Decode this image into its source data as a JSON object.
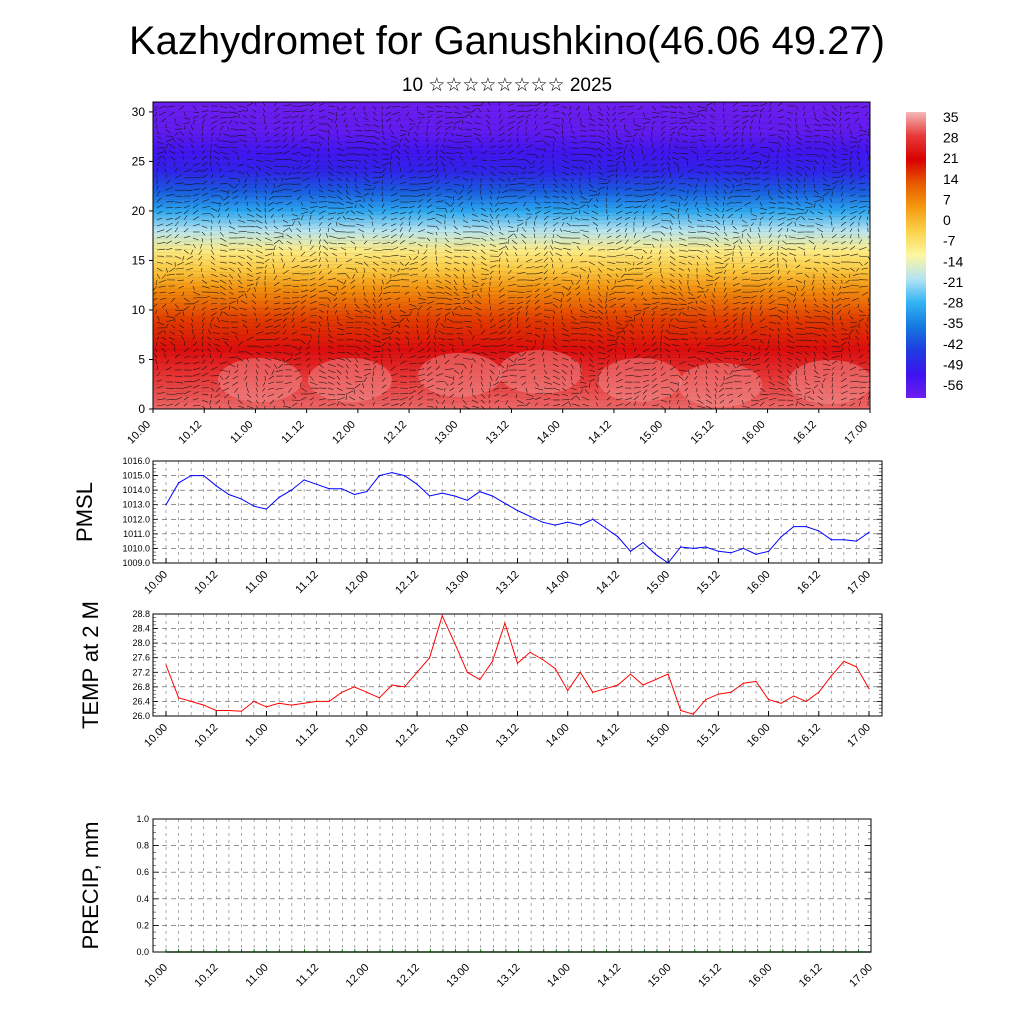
{
  "title": "Kazhydromet for Ganushkino(46.06 49.27)",
  "subtitle": "10 ☆☆☆☆☆☆☆☆ 2025",
  "colors": {
    "pmsl_line": "#0000ff",
    "temp_line": "#ff0000",
    "precip_line": "#1a7a1a"
  },
  "chart_data": [
    {
      "id": "cross-section",
      "type": "heatmap",
      "description_of_values": "temperature vs height with wind vectors",
      "x_ticks": [
        "10.00",
        "10.12",
        "11.00",
        "11.12",
        "12.00",
        "12.12",
        "13.00",
        "13.12",
        "14.00",
        "14.12",
        "15.00",
        "15.12",
        "16.00",
        "16.12",
        "17.00"
      ],
      "y_ticks": [
        "0",
        "5",
        "10",
        "15",
        "20",
        "25",
        "30"
      ],
      "ylim": [
        0,
        31
      ],
      "colorbar_labels": [
        "35",
        "28",
        "21",
        "14",
        "7",
        "0",
        "-7",
        "-14",
        "-21",
        "-28",
        "-35",
        "-42",
        "-49",
        "-56"
      ],
      "colorbar_colors": [
        "#f4b8b8",
        "#e83a3a",
        "#d80000",
        "#e85a00",
        "#f59a10",
        "#fcd24a",
        "#fdf7a0",
        "#b4e4f4",
        "#32b4f4",
        "#1478e0",
        "#1e3ce0",
        "#3c14f0",
        "#6e1ef0"
      ],
      "temperature_by_height": [
        {
          "h": 0,
          "t": 30
        },
        {
          "h": 3,
          "t": 27
        },
        {
          "h": 6,
          "t": 21
        },
        {
          "h": 9,
          "t": 14
        },
        {
          "h": 12,
          "t": 5
        },
        {
          "h": 14,
          "t": -3
        },
        {
          "h": 16,
          "t": -10
        },
        {
          "h": 18,
          "t": -20
        },
        {
          "h": 20,
          "t": -30
        },
        {
          "h": 22,
          "t": -40
        },
        {
          "h": 24,
          "t": -49
        },
        {
          "h": 26,
          "t": -53
        },
        {
          "h": 28,
          "t": -58
        },
        {
          "h": 31,
          "t": -60
        }
      ]
    },
    {
      "id": "pmsl",
      "type": "line",
      "ylabel": "PMSL",
      "x_ticks": [
        "10.00",
        "10.12",
        "11.00",
        "11.12",
        "12.00",
        "12.12",
        "13.00",
        "13.12",
        "14.00",
        "14.12",
        "15.00",
        "15.12",
        "16.00",
        "16.12",
        "17.00"
      ],
      "y_ticks": [
        "1009.0",
        "1010.0",
        "1011.0",
        "1012.0",
        "1013.0",
        "1014.0",
        "1015.0",
        "1016.0"
      ],
      "ylim": [
        1009,
        1016
      ],
      "x_unit": "hours since 10.00",
      "x": [
        0,
        3,
        6,
        9,
        12,
        15,
        18,
        21,
        24,
        27,
        30,
        33,
        36,
        39,
        42,
        45,
        48,
        51,
        54,
        57,
        60,
        63,
        66,
        69,
        72,
        75,
        78,
        81,
        84,
        87,
        90,
        93,
        96,
        99,
        102,
        105,
        108,
        111,
        114,
        117,
        120,
        123,
        126,
        129,
        132,
        135,
        138,
        141,
        144,
        147,
        150,
        153,
        156,
        159,
        162,
        165,
        168
      ],
      "values": [
        1013.0,
        1014.5,
        1015.0,
        1015.0,
        1014.3,
        1013.7,
        1013.4,
        1012.9,
        1012.7,
        1013.5,
        1014.0,
        1014.7,
        1014.4,
        1014.1,
        1014.1,
        1013.7,
        1013.9,
        1015.0,
        1015.2,
        1015.0,
        1014.4,
        1013.6,
        1013.8,
        1013.6,
        1013.3,
        1013.9,
        1013.6,
        1013.1,
        1012.6,
        1012.2,
        1011.8,
        1011.6,
        1011.8,
        1011.6,
        1012.0,
        1011.4,
        1010.8,
        1009.8,
        1010.4,
        1009.6,
        1009.0,
        1010.1,
        1010.0,
        1010.1,
        1009.8,
        1009.7,
        1010.0,
        1009.6,
        1009.8,
        1010.8,
        1011.5,
        1011.5,
        1011.2,
        1010.6,
        1010.6,
        1010.5,
        1011.1
      ]
    },
    {
      "id": "temp",
      "type": "line",
      "ylabel": "TEMP at 2 M",
      "x_ticks": [
        "10.00",
        "10.12",
        "11.00",
        "11.12",
        "12.00",
        "12.12",
        "13.00",
        "13.12",
        "14.00",
        "14.12",
        "15.00",
        "15.12",
        "16.00",
        "16.12",
        "17.00"
      ],
      "y_ticks": [
        "26.0",
        "26.4",
        "26.8",
        "27.2",
        "27.6",
        "28.0",
        "28.4",
        "28.8"
      ],
      "ylim": [
        26.0,
        28.8
      ],
      "x_unit": "hours since 10.00",
      "x": [
        0,
        3,
        6,
        9,
        12,
        15,
        18,
        21,
        24,
        27,
        30,
        33,
        36,
        39,
        42,
        45,
        48,
        51,
        54,
        57,
        60,
        63,
        66,
        69,
        72,
        75,
        78,
        81,
        84,
        87,
        90,
        93,
        96,
        99,
        102,
        105,
        108,
        111,
        114,
        117,
        120,
        123,
        126,
        129,
        132,
        135,
        138,
        141,
        144,
        147,
        150,
        153,
        156,
        159,
        162,
        165,
        168
      ],
      "values": [
        27.4,
        26.5,
        26.4,
        26.3,
        26.15,
        26.15,
        26.13,
        26.4,
        26.25,
        26.35,
        26.3,
        26.35,
        26.4,
        26.4,
        26.65,
        26.8,
        26.65,
        26.5,
        26.85,
        26.8,
        27.2,
        27.6,
        28.75,
        28.0,
        27.2,
        27.0,
        27.5,
        28.55,
        27.45,
        27.75,
        27.55,
        27.3,
        26.7,
        27.2,
        26.65,
        26.75,
        26.85,
        27.15,
        26.85,
        27.0,
        27.15,
        26.15,
        26.05,
        26.45,
        26.6,
        26.65,
        26.9,
        26.95,
        26.45,
        26.35,
        26.55,
        26.4,
        26.65,
        27.1,
        27.5,
        27.35,
        26.75
      ]
    },
    {
      "id": "precip",
      "type": "line",
      "ylabel": "PRECIP, mm",
      "x_ticks": [
        "10.00",
        "10.12",
        "11.00",
        "11.12",
        "12.00",
        "12.12",
        "13.00",
        "13.12",
        "14.00",
        "14.12",
        "15.00",
        "15.12",
        "16.00",
        "16.12",
        "17.00"
      ],
      "y_ticks": [
        "0.0",
        "0.2",
        "0.4",
        "0.6",
        "0.8",
        "1.0"
      ],
      "ylim": [
        0,
        1.0
      ],
      "x_unit": "hours since 10.00",
      "x": [
        0,
        168
      ],
      "values": [
        0,
        0
      ]
    }
  ]
}
